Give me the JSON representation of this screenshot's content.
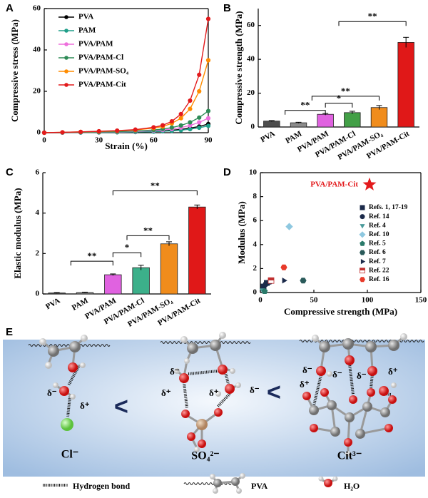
{
  "chart_data": [
    {
      "type": "line",
      "panel": "A",
      "x_label": "Strain (%)",
      "y_label": "Compressive stress (MPa)",
      "x": [
        0,
        10,
        20,
        30,
        40,
        50,
        60,
        65,
        70,
        75,
        80,
        85,
        90
      ],
      "series": [
        {
          "name": "PVA",
          "color": "#000000",
          "values": [
            0,
            0.05,
            0.1,
            0.15,
            0.25,
            0.4,
            0.7,
            0.9,
            1.2,
            1.6,
            2.2,
            3.0,
            4.2
          ]
        },
        {
          "name": "PAM",
          "color": "#1f9e89",
          "values": [
            0,
            0.04,
            0.08,
            0.12,
            0.2,
            0.3,
            0.5,
            0.7,
            0.9,
            1.2,
            1.7,
            2.4,
            3.3
          ]
        },
        {
          "name": "PVA/PAM",
          "color": "#ee6fdc",
          "values": [
            0,
            0.08,
            0.15,
            0.25,
            0.4,
            0.6,
            1.0,
            1.3,
            1.8,
            2.5,
            3.5,
            5.0,
            7.0
          ]
        },
        {
          "name": "PVA/PAM-Cl",
          "color": "#2e8b57",
          "values": [
            0,
            0.1,
            0.2,
            0.3,
            0.5,
            0.8,
            1.3,
            1.8,
            2.5,
            3.5,
            5.0,
            7.3,
            10.5
          ]
        },
        {
          "name": "PVA/PAM-SO₄",
          "color": "#ff8c00",
          "values": [
            0,
            0.2,
            0.4,
            0.6,
            0.9,
            1.3,
            2.2,
            3.0,
            4.5,
            7.0,
            11.5,
            20,
            35
          ]
        },
        {
          "name": "PVA/PAM-Cit",
          "color": "#e31a1c",
          "values": [
            0,
            0.2,
            0.4,
            0.7,
            1.0,
            1.5,
            2.6,
            3.6,
            5.5,
            9.0,
            15.5,
            28,
            55
          ]
        }
      ],
      "xlim": [
        0,
        90
      ],
      "xticks": [
        0,
        30,
        60,
        90
      ],
      "ylim": [
        0,
        60
      ],
      "yticks": [
        0,
        20,
        40,
        60
      ],
      "box": true
    },
    {
      "type": "bar",
      "panel": "B",
      "y_label": "Compressive strength (MPa)",
      "categories": [
        "PVA",
        "PAM",
        "PVA/PAM",
        "PVA/PAM-Cl",
        "PVA/PAM-SO₄",
        "PVA/PAM-Cit"
      ],
      "values": [
        3.5,
        2.5,
        7.5,
        8.5,
        11.5,
        50
      ],
      "errors": [
        0.3,
        0.3,
        0.5,
        0.8,
        1.2,
        3
      ],
      "colors": [
        "#4d4d4d",
        "#8c8c8c",
        "#e062e0",
        "#43a047",
        "#f08c1c",
        "#e01818"
      ],
      "annotations": [
        "**",
        "*",
        "**",
        "**"
      ],
      "ylim": [
        0,
        70
      ],
      "yticks": [
        0,
        20,
        40,
        60
      ]
    },
    {
      "type": "bar",
      "panel": "C",
      "y_label": "Elastic modulus (MPa)",
      "categories": [
        "PVA",
        "PAM",
        "PVA/PAM",
        "PVA/PAM-Cl",
        "PVA/PAM-SO₄",
        "PVA/PAM-Cit"
      ],
      "values": [
        0.05,
        0.07,
        0.95,
        1.3,
        2.48,
        4.3
      ],
      "errors": [
        0.02,
        0.02,
        0.04,
        0.12,
        0.1,
        0.1
      ],
      "colors": [
        "#4d4d4d",
        "#8c8c8c",
        "#e062e0",
        "#3cb08a",
        "#f08c1c",
        "#e01818"
      ],
      "annotations": [
        "**",
        "*",
        "**",
        "**"
      ],
      "ylim": [
        0,
        6
      ],
      "yticks": [
        0,
        2,
        4,
        6
      ]
    },
    {
      "type": "scatter",
      "panel": "D",
      "x_label": "Compressive strength (MPa)",
      "y_label": "Modulus (MPa)",
      "series": [
        {
          "name": "Refs. 1, 17-19",
          "color": "#1b2a4a",
          "marker": "square",
          "x": [
            3,
            6
          ],
          "y": [
            0.5,
            0.8
          ]
        },
        {
          "name": "Ref. 14",
          "color": "#1b2a4a",
          "marker": "circle",
          "x": [
            5,
            9
          ],
          "y": [
            0.7,
            0.9
          ]
        },
        {
          "name": "Ref. 4",
          "color": "#4a9a9a",
          "marker": "tri-down",
          "x": [
            2
          ],
          "y": [
            0.2
          ]
        },
        {
          "name": "Ref. 10",
          "color": "#8ec8e0",
          "marker": "diamond",
          "x": [
            27
          ],
          "y": [
            5.5
          ]
        },
        {
          "name": "Ref. 5",
          "color": "#2a7a6a",
          "marker": "pentagon",
          "x": [
            4
          ],
          "y": [
            0.1
          ]
        },
        {
          "name": "Ref. 6",
          "color": "#2a5a5a",
          "marker": "hexagon",
          "x": [
            40
          ],
          "y": [
            1.0
          ]
        },
        {
          "name": "Ref. 7",
          "color": "#1b2a4a",
          "marker": "tri-right",
          "x": [
            22
          ],
          "y": [
            1.0
          ]
        },
        {
          "name": "Ref. 22",
          "color": "#c03030",
          "marker": "flag",
          "x": [
            10
          ],
          "y": [
            1.0
          ]
        },
        {
          "name": "Ref. 16",
          "color": "#e83a2a",
          "marker": "hexagon",
          "x": [
            22
          ],
          "y": [
            2.1
          ]
        }
      ],
      "highlight": {
        "name": "PVA/PAM-Cit",
        "color": "#e31a1c",
        "x": 102,
        "y": 9
      },
      "xlim": [
        0,
        150
      ],
      "xticks": [
        0,
        50,
        100,
        150
      ],
      "ylim": [
        0,
        10
      ],
      "yticks": [
        0,
        2,
        4,
        6,
        8,
        10
      ],
      "box": true
    }
  ],
  "scheme": {
    "panel": "E",
    "deltas": [
      "δ⁻",
      "δ⁺",
      "δ⁻",
      "δ⁺",
      "δ⁺",
      "δ⁻",
      "δ⁻",
      "δ⁺",
      "δ⁻",
      "δ⁻",
      "δ⁺"
    ],
    "less_than": [
      "<",
      "<"
    ],
    "ions": [
      "Cl⁻",
      "SO₄²⁻",
      "Cit³⁻"
    ],
    "legend": [
      "Hydrogen bond",
      "PVA",
      "H₂O"
    ]
  }
}
